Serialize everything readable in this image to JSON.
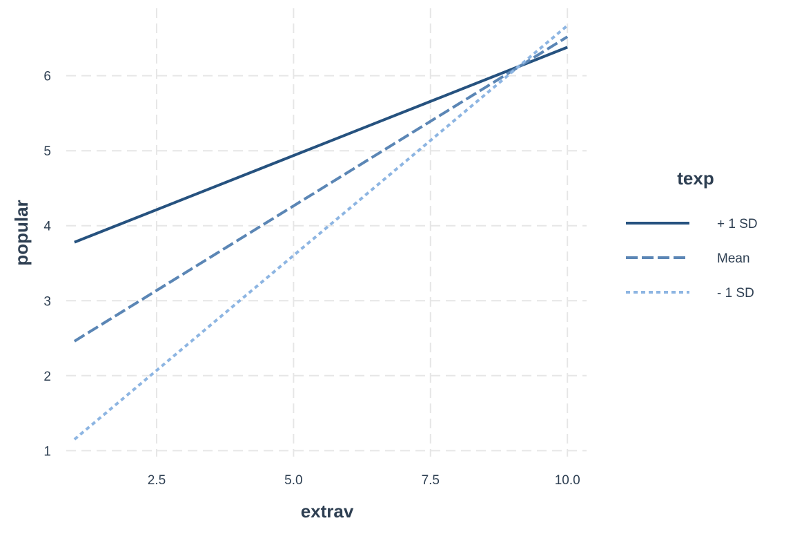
{
  "chart_data": {
    "type": "line",
    "xlabel": "extrav",
    "ylabel": "popular",
    "xlim": [
      0.85,
      10.35
    ],
    "ylim": [
      0.92,
      6.9
    ],
    "x_ticks": [
      2.5,
      5.0,
      7.5,
      10.0
    ],
    "x_tick_labels": [
      "2.5",
      "5.0",
      "7.5",
      "10.0"
    ],
    "y_ticks": [
      1,
      2,
      3,
      4,
      5,
      6
    ],
    "y_tick_labels": [
      "1",
      "2",
      "3",
      "4",
      "5",
      "6"
    ],
    "grid": true,
    "legend": {
      "title": "texp",
      "position": "right"
    },
    "series": [
      {
        "name": "+ 1 SD",
        "x": [
          1,
          10
        ],
        "y": [
          3.78,
          6.38
        ],
        "color": "#26527f",
        "line_style": "solid"
      },
      {
        "name": "Mean",
        "x": [
          1,
          10
        ],
        "y": [
          2.46,
          6.52
        ],
        "color": "#5b86b5",
        "line_style": "dashed"
      },
      {
        "name": "- 1 SD",
        "x": [
          1,
          10
        ],
        "y": [
          1.15,
          6.67
        ],
        "color": "#8db5e2",
        "line_style": "dotted"
      }
    ]
  }
}
